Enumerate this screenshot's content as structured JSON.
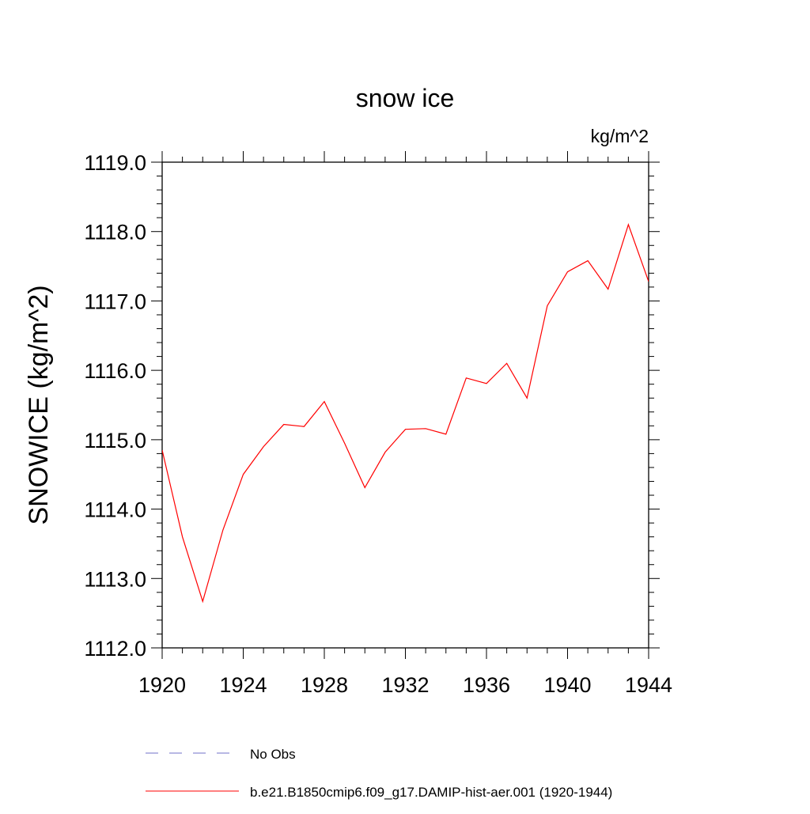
{
  "chart_data": {
    "type": "line",
    "title": "snow ice",
    "units_label": "kg/m^2",
    "ylabel": "SNOWICE  (kg/m^2)",
    "xlabel": "",
    "xlim": [
      1920,
      1944
    ],
    "ylim": [
      1112.0,
      1119.0
    ],
    "x_ticks": [
      1920,
      1924,
      1928,
      1932,
      1936,
      1940,
      1944
    ],
    "x_tick_labels": [
      "1920",
      "1924",
      "1928",
      "1932",
      "1936",
      "1940",
      "1944"
    ],
    "y_ticks": [
      1112.0,
      1113.0,
      1114.0,
      1115.0,
      1116.0,
      1117.0,
      1118.0,
      1119.0
    ],
    "y_tick_labels": [
      "1112.0",
      "1113.0",
      "1114.0",
      "1115.0",
      "1116.0",
      "1117.0",
      "1118.0",
      "1119.0"
    ],
    "grid": false,
    "legend_position": "bottom",
    "series": [
      {
        "name": "b.e21.B1850cmip6.f09_g17.DAMIP-hist-aer.001 (1920-1944)",
        "color": "#ff0000",
        "line_style": "solid",
        "x": [
          1920,
          1921,
          1922,
          1923,
          1924,
          1925,
          1926,
          1927,
          1928,
          1929,
          1930,
          1931,
          1932,
          1933,
          1934,
          1935,
          1936,
          1937,
          1938,
          1939,
          1940,
          1941,
          1942,
          1943,
          1944
        ],
        "y": [
          1114.85,
          1113.6,
          1112.67,
          1113.7,
          1114.5,
          1114.9,
          1115.22,
          1115.19,
          1115.55,
          1114.95,
          1114.31,
          1114.82,
          1115.15,
          1115.16,
          1115.08,
          1115.89,
          1115.81,
          1116.1,
          1115.6,
          1116.93,
          1117.42,
          1117.58,
          1117.17,
          1118.1,
          1117.28
        ]
      }
    ],
    "legend": [
      {
        "label": "No Obs",
        "color": "#7070c8",
        "line_style": "dashed"
      },
      {
        "label": "b.e21.B1850cmip6.f09_g17.DAMIP-hist-aer.001 (1920-1944)",
        "color": "#ff0000",
        "line_style": "solid"
      }
    ]
  }
}
